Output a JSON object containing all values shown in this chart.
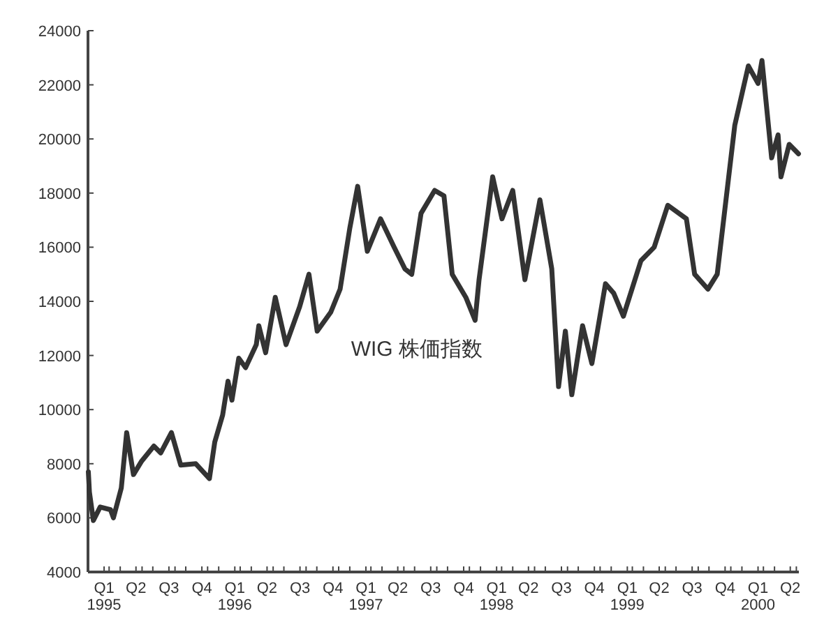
{
  "chart_data": {
    "type": "line",
    "x": [
      "1995-01-02",
      "1995-01-05",
      "1995-01-16",
      "1995-02-04",
      "1995-03-05",
      "1995-03-13",
      "1995-04-04",
      "1995-04-19",
      "1995-05-08",
      "1995-05-31",
      "1995-07-04",
      "1995-07-23",
      "1995-08-22",
      "1995-09-17",
      "1995-10-29",
      "1995-12-06",
      "1995-12-21",
      "1996-01-12",
      "1996-01-27",
      "1996-02-07",
      "1996-02-26",
      "1996-03-16",
      "1996-04-15",
      "1996-04-22",
      "1996-05-11",
      "1996-06-07",
      "1996-07-07",
      "1996-08-14",
      "1996-09-09",
      "1996-10-02",
      "1996-11-09",
      "1996-12-05",
      "1997-01-01",
      "1997-01-23",
      "1997-02-19",
      "1997-03-28",
      "1997-05-05",
      "1997-06-04",
      "1997-06-23",
      "1997-07-19",
      "1997-08-26",
      "1997-09-21",
      "1997-10-14",
      "1997-11-21",
      "1997-12-17",
      "1997-12-28",
      "1998-02-04",
      "1998-03-02",
      "1998-04-01",
      "1998-05-05",
      "1998-06-16",
      "1998-07-19",
      "1998-08-07",
      "1998-08-26",
      "1998-09-13",
      "1998-10-13",
      "1998-11-08",
      "1998-12-16",
      "1999-01-08",
      "1999-02-04",
      "1999-03-25",
      "1999-05-01",
      "1999-06-08",
      "1999-07-30",
      "1999-08-22",
      "1999-09-28",
      "1999-10-24",
      "1999-12-12",
      "2000-01-19",
      "2000-02-15",
      "2000-02-26",
      "2000-03-24",
      "2000-04-11",
      "2000-04-19",
      "2000-05-12",
      "2000-06-07"
    ],
    "series": [
      {
        "name": "WIG 株価指数",
        "color": "#333333",
        "values": [
          7700,
          6950,
          5900,
          6400,
          6300,
          6000,
          7100,
          9150,
          7600,
          8100,
          8650,
          8400,
          9150,
          7950,
          8000,
          7450,
          8800,
          9800,
          11050,
          10350,
          11900,
          11550,
          12400,
          13100,
          12100,
          14150,
          12400,
          13800,
          15000,
          12900,
          13600,
          14450,
          16700,
          18250,
          15850,
          17050,
          16000,
          15200,
          15000,
          17250,
          18100,
          17900,
          15000,
          14150,
          13300,
          14800,
          18600,
          17050,
          18100,
          14800,
          17750,
          15200,
          10850,
          12900,
          10550,
          13100,
          11700,
          14650,
          14300,
          13450,
          15500,
          16000,
          17550,
          17050,
          15000,
          14450,
          15000,
          20500,
          22700,
          22050,
          22900,
          19300,
          20150,
          18600,
          19800,
          19450
        ]
      }
    ],
    "xlim": [
      "1995-01-01",
      "2000-06-08"
    ],
    "xticks": [
      {
        "value": "1995-01-01",
        "label": null
      },
      {
        "value": "1995-02-15",
        "label": "Q1\n1995"
      },
      {
        "value": "1995-03-01",
        "label": null
      },
      {
        "value": "1995-04-01",
        "label": null
      },
      {
        "value": "1995-05-15",
        "label": "Q2"
      },
      {
        "value": "1995-06-01",
        "label": null
      },
      {
        "value": "1995-07-01",
        "label": null
      },
      {
        "value": "1995-08-15",
        "label": "Q3"
      },
      {
        "value": "1995-09-01",
        "label": null
      },
      {
        "value": "1995-10-01",
        "label": null
      },
      {
        "value": "1995-11-15",
        "label": "Q4"
      },
      {
        "value": "1995-12-01",
        "label": null
      },
      {
        "value": "1996-01-01",
        "label": null
      },
      {
        "value": "1996-02-15",
        "label": "Q1\n1996"
      },
      {
        "value": "1996-03-01",
        "label": null
      },
      {
        "value": "1996-04-01",
        "label": null
      },
      {
        "value": "1996-05-15",
        "label": "Q2"
      },
      {
        "value": "1996-06-01",
        "label": null
      },
      {
        "value": "1996-07-01",
        "label": null
      },
      {
        "value": "1996-08-15",
        "label": "Q3"
      },
      {
        "value": "1996-09-01",
        "label": null
      },
      {
        "value": "1996-10-01",
        "label": null
      },
      {
        "value": "1996-11-15",
        "label": "Q4"
      },
      {
        "value": "1996-12-01",
        "label": null
      },
      {
        "value": "1997-01-01",
        "label": null
      },
      {
        "value": "1997-02-15",
        "label": "Q1\n1997"
      },
      {
        "value": "1997-03-01",
        "label": null
      },
      {
        "value": "1997-04-01",
        "label": null
      },
      {
        "value": "1997-05-15",
        "label": "Q2"
      },
      {
        "value": "1997-06-01",
        "label": null
      },
      {
        "value": "1997-07-01",
        "label": null
      },
      {
        "value": "1997-08-15",
        "label": "Q3"
      },
      {
        "value": "1997-09-01",
        "label": null
      },
      {
        "value": "1997-10-01",
        "label": null
      },
      {
        "value": "1997-11-15",
        "label": "Q4"
      },
      {
        "value": "1997-12-01",
        "label": null
      },
      {
        "value": "1998-01-01",
        "label": null
      },
      {
        "value": "1998-02-15",
        "label": "Q1\n1998"
      },
      {
        "value": "1998-03-01",
        "label": null
      },
      {
        "value": "1998-04-01",
        "label": null
      },
      {
        "value": "1998-05-15",
        "label": "Q2"
      },
      {
        "value": "1998-06-01",
        "label": null
      },
      {
        "value": "1998-07-01",
        "label": null
      },
      {
        "value": "1998-08-15",
        "label": "Q3"
      },
      {
        "value": "1998-09-01",
        "label": null
      },
      {
        "value": "1998-10-01",
        "label": null
      },
      {
        "value": "1998-11-15",
        "label": "Q4"
      },
      {
        "value": "1998-12-01",
        "label": null
      },
      {
        "value": "1999-01-01",
        "label": null
      },
      {
        "value": "1999-02-15",
        "label": "Q1\n1999"
      },
      {
        "value": "1999-03-01",
        "label": null
      },
      {
        "value": "1999-04-01",
        "label": null
      },
      {
        "value": "1999-05-15",
        "label": "Q2"
      },
      {
        "value": "1999-06-01",
        "label": null
      },
      {
        "value": "1999-07-01",
        "label": null
      },
      {
        "value": "1999-08-15",
        "label": "Q3"
      },
      {
        "value": "1999-09-01",
        "label": null
      },
      {
        "value": "1999-10-01",
        "label": null
      },
      {
        "value": "1999-11-15",
        "label": "Q4"
      },
      {
        "value": "1999-12-01",
        "label": null
      },
      {
        "value": "2000-01-01",
        "label": null
      },
      {
        "value": "2000-02-15",
        "label": "Q1\n2000"
      },
      {
        "value": "2000-03-01",
        "label": null
      },
      {
        "value": "2000-04-01",
        "label": null
      },
      {
        "value": "2000-05-15",
        "label": "Q2"
      },
      {
        "value": "2000-06-01",
        "label": null
      }
    ],
    "ylim": [
      4000,
      24000
    ],
    "yticks": [
      4000,
      6000,
      8000,
      10000,
      12000,
      14000,
      16000,
      18000,
      20000,
      22000,
      24000
    ],
    "grid": false
  }
}
